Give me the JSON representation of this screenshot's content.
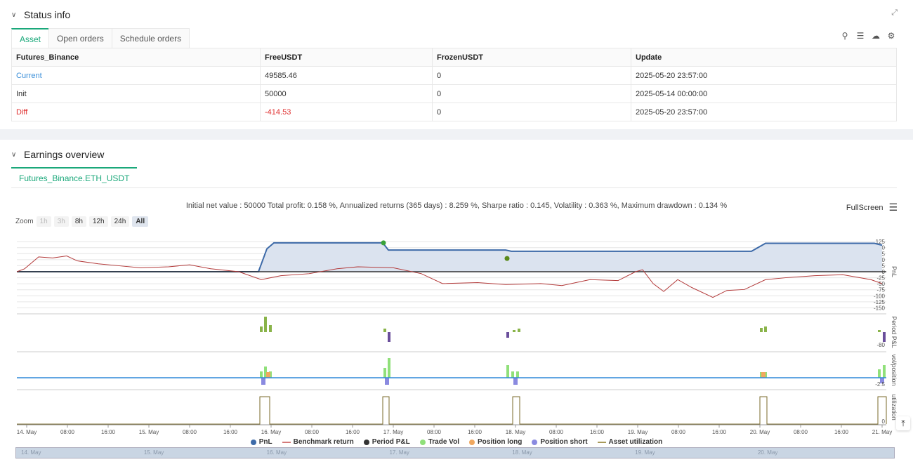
{
  "status": {
    "title": "Status info",
    "tabs": [
      "Asset",
      "Open orders",
      "Schedule orders"
    ],
    "table": {
      "headers": [
        "Futures_Binance",
        "FreeUSDT",
        "FrozenUSDT",
        "Update"
      ],
      "rows": [
        [
          "Current",
          "49585.46",
          "0",
          "2025-05-20 23:57:00"
        ],
        [
          "Init",
          "50000",
          "0",
          "2025-05-14 00:00:00"
        ],
        [
          "Diff",
          "-414.53",
          "0",
          "2025-05-20 23:57:00"
        ]
      ]
    },
    "icons": [
      "search-icon",
      "menu-icon",
      "cloud-download-icon",
      "gear-icon"
    ]
  },
  "earnings": {
    "title": "Earnings overview",
    "tab": "Futures_Binance.ETH_USDT",
    "summary": "Initial net value : 50000 Total profit: 0.158 %, Annualized returns (365 days) : 8.259 %, Sharpe ratio : 0.145, Volatility : 0.363 %, Maximum drawdown : 0.134 %",
    "fullscreen_label": "FullScreen",
    "zoom_label": "Zoom",
    "zoom_buttons": [
      "1h",
      "3h",
      "8h",
      "12h",
      "24h",
      "All"
    ],
    "legend": [
      "PnL",
      "Benchmark return",
      "Period P&L",
      "Trade Vol",
      "Position long",
      "Position short",
      "Asset utilization"
    ]
  },
  "chart_data": {
    "type": "line",
    "x_ticks": [
      "14. May",
      "08:00",
      "16:00",
      "15. May",
      "08:00",
      "16:00",
      "16. May",
      "08:00",
      "16:00",
      "17. May",
      "08:00",
      "16:00",
      "18. May",
      "08:00",
      "16:00",
      "19. May",
      "08:00",
      "16:00",
      "20. May",
      "08:00",
      "16:00",
      "21. May"
    ],
    "y_ticks_pnl": [
      "125",
      "100",
      "75",
      "50",
      "25",
      "0",
      "-25",
      "-50",
      "-75",
      "-100",
      "-125",
      "-150"
    ],
    "pane_labels": [
      "PnL",
      "Period P&L",
      "vol/position",
      "utilization"
    ],
    "period_tick": "-80",
    "vol_tick": "-2.5",
    "util_tick": "0",
    "navigator_labels": [
      "14. May",
      "15. May",
      "16. May",
      "17. May",
      "18. May",
      "19. May",
      "20. May"
    ],
    "colors": {
      "pnl": "#3d6aa8",
      "benchmark": "#b33a3a",
      "period_pos": "#8ab44a",
      "period_neg": "#6a4e9b",
      "trade_vol": "#90e07a",
      "long": "#f0a860",
      "short": "#8a8ae0",
      "util": "#7a6a2a",
      "position_line": "#2f88d8"
    }
  }
}
